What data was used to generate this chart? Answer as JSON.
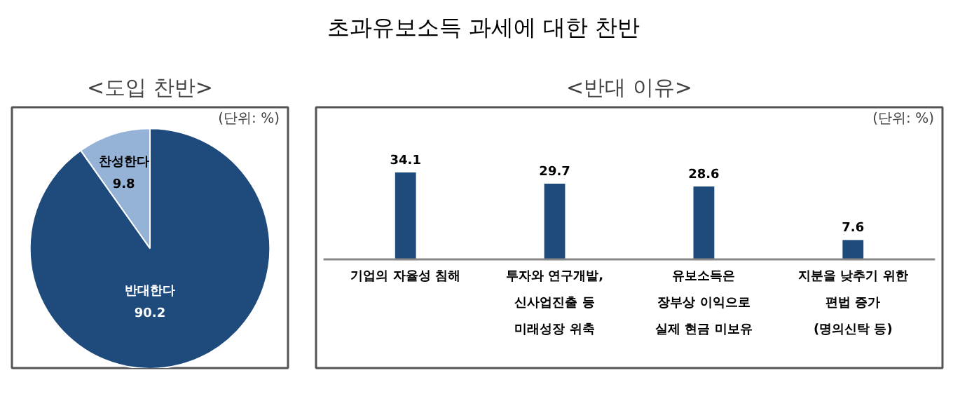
{
  "chart_data": [
    {
      "type": "other",
      "title": "초과유보소득 과세에 대한 찬반"
    },
    {
      "type": "pie",
      "title": "<도입 찬반>",
      "annotations": [
        "(단위: %)"
      ],
      "categories": [
        "찬성한다",
        "반대한다"
      ],
      "values": [
        9.8,
        90.2
      ],
      "colors": [
        "#95b3d7",
        "#1f4a7c"
      ],
      "data_labels": true
    },
    {
      "type": "bar",
      "title": "<반대 이유>",
      "annotations": [
        "(단위: %)"
      ],
      "categories": [
        "기업의 자율성 침해",
        "투자와 연구개발,\n신사업진출 등\n미래성장 위축",
        "유보소득은\n장부상 이익으로\n실제 현금 미보유",
        "지분을 낮추기 위한\n편법 증가\n(명의신탁 등)"
      ],
      "values": [
        34.1,
        29.7,
        28.6,
        7.6
      ],
      "color": "#1f4a7c",
      "data_labels": true,
      "grid": false
    }
  ]
}
